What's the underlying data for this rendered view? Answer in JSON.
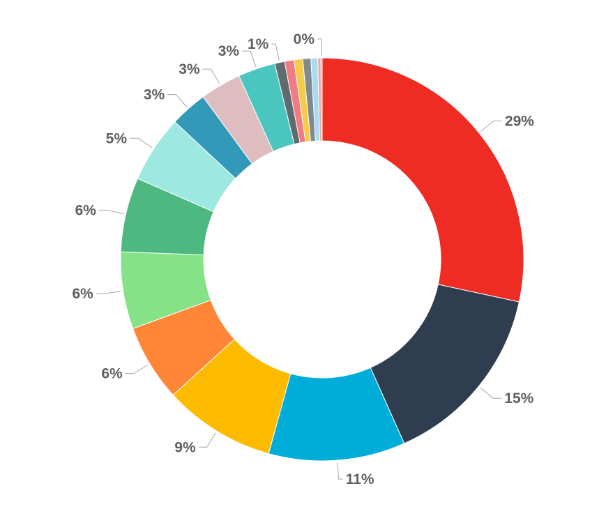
{
  "chart_data": {
    "type": "pie",
    "variant": "donut",
    "legend": "none",
    "slices": [
      {
        "value": 28.5,
        "label": "29%",
        "color": "#EE2C24"
      },
      {
        "value": 15.0,
        "label": "15%",
        "color": "#2E3E50"
      },
      {
        "value": 11.0,
        "label": "11%",
        "color": "#00ADD8"
      },
      {
        "value": 9.0,
        "label": "9%",
        "color": "#FDBB00"
      },
      {
        "value": 6.2,
        "label": "6%",
        "color": "#FF8636"
      },
      {
        "value": 6.2,
        "label": "6%",
        "color": "#85E286"
      },
      {
        "value": 6.0,
        "label": "6%",
        "color": "#4DB880"
      },
      {
        "value": 5.4,
        "label": "5%",
        "color": "#9DE8E0"
      },
      {
        "value": 3.0,
        "label": "3%",
        "color": "#3399B8"
      },
      {
        "value": 3.3,
        "label": "3%",
        "color": "#DEBDC0"
      },
      {
        "value": 3.0,
        "label": "3%",
        "color": "#4AC6BE"
      },
      {
        "value": 0.8,
        "label": "1%",
        "color": "#5F6B6F"
      },
      {
        "value": 0.75,
        "label": "",
        "color": "#F27A80"
      },
      {
        "value": 0.7,
        "label": "",
        "color": "#F5CB4A"
      },
      {
        "value": 0.65,
        "label": "",
        "color": "#808A8E"
      },
      {
        "value": 0.55,
        "label": "",
        "color": "#A6DCF2"
      },
      {
        "value": 0.25,
        "label": "",
        "color": "#F4A4A0"
      },
      {
        "value": 0.1,
        "label": "0%",
        "color": "#6E9EC9"
      }
    ]
  }
}
